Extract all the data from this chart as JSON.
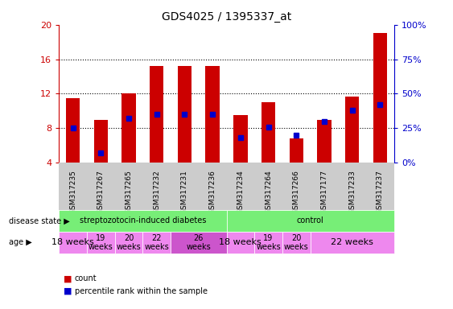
{
  "title": "GDS4025 / 1395337_at",
  "samples": [
    "GSM317235",
    "GSM317267",
    "GSM317265",
    "GSM317232",
    "GSM317231",
    "GSM317236",
    "GSM317234",
    "GSM317264",
    "GSM317266",
    "GSM317177",
    "GSM317233",
    "GSM317237"
  ],
  "counts": [
    11.5,
    9.0,
    12.0,
    15.2,
    15.2,
    15.2,
    9.5,
    11.0,
    6.8,
    9.0,
    11.7,
    19.0
  ],
  "percentiles": [
    25,
    7,
    32,
    35,
    35,
    35,
    18,
    26,
    20,
    30,
    38,
    42
  ],
  "ylim_left": [
    4,
    20
  ],
  "ylim_right": [
    0,
    100
  ],
  "yticks_left": [
    4,
    8,
    12,
    16,
    20
  ],
  "yticks_right": [
    0,
    25,
    50,
    75,
    100
  ],
  "left_color": "#cc0000",
  "right_color": "#0000cc",
  "disease_groups": {
    "streptozotocin-induced diabetes": {
      "indices": [
        0,
        5
      ],
      "label": "streptozotocin-induced diabetes"
    },
    "control": {
      "indices": [
        6,
        11
      ],
      "label": "control"
    }
  },
  "disease_color": "#77ee77",
  "age_groups": [
    {
      "label": "18 weeks",
      "span": [
        0,
        0
      ],
      "color": "#ee88ee",
      "fontsize": 8
    },
    {
      "label": "19\nweeks",
      "span": [
        1,
        1
      ],
      "color": "#ee88ee",
      "fontsize": 7
    },
    {
      "label": "20\nweeks",
      "span": [
        2,
        2
      ],
      "color": "#ee88ee",
      "fontsize": 7
    },
    {
      "label": "22\nweeks",
      "span": [
        3,
        3
      ],
      "color": "#ee88ee",
      "fontsize": 7
    },
    {
      "label": "26\nweeks",
      "span": [
        4,
        5
      ],
      "color": "#cc55cc",
      "fontsize": 7
    },
    {
      "label": "18 weeks",
      "span": [
        6,
        6
      ],
      "color": "#ee88ee",
      "fontsize": 8
    },
    {
      "label": "19\nweeks",
      "span": [
        7,
        7
      ],
      "color": "#ee88ee",
      "fontsize": 7
    },
    {
      "label": "20\nweeks",
      "span": [
        8,
        8
      ],
      "color": "#ee88ee",
      "fontsize": 7
    },
    {
      "label": "22 weeks",
      "span": [
        9,
        11
      ],
      "color": "#ee88ee",
      "fontsize": 8
    }
  ],
  "bar_width": 0.5,
  "marker_size": 5,
  "background_color": "#ffffff",
  "tick_label_area_color": "#cccccc",
  "grid_color": "#000000",
  "n_samples": 12
}
